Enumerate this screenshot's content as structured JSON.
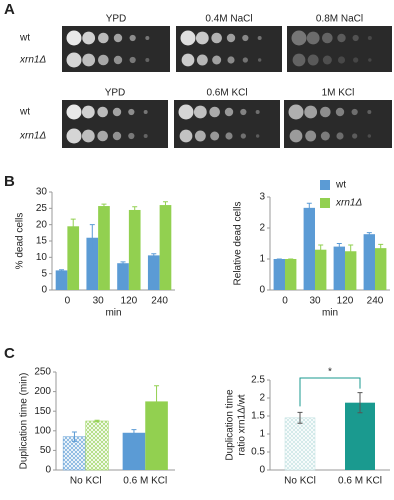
{
  "panel_labels": [
    "A",
    "B",
    "C"
  ],
  "plates": [
    {
      "conditions": [
        "YPD",
        "0.4M NaCl",
        "0.8M NaCl"
      ],
      "strains": [
        "wt",
        "xrn1Δ"
      ]
    },
    {
      "conditions": [
        "YPD",
        "0.6M KCl",
        "1M KCl"
      ],
      "strains": [
        "wt",
        "xrn1Δ"
      ]
    }
  ],
  "chart_data": [
    {
      "type": "bar",
      "ylabel": "% dead  cells",
      "xlabel": "min",
      "categories": [
        "0",
        "30",
        "120",
        "240"
      ],
      "series": [
        {
          "color": "#5b9bd5",
          "values": [
            6,
            16,
            8.2,
            10.6
          ],
          "errors": [
            0.2,
            4,
            0.4,
            0.5
          ]
        },
        {
          "color": "#92d050",
          "values": [
            19.5,
            25.7,
            24.5,
            26
          ],
          "errors": [
            2.2,
            0.6,
            1,
            1
          ]
        }
      ],
      "ylim": [
        0,
        30
      ],
      "yticks": [
        0,
        5,
        10,
        15,
        20,
        25,
        30
      ]
    },
    {
      "type": "bar",
      "ylabel": "Relative dead cells",
      "xlabel": "min",
      "categories": [
        "0",
        "30",
        "120",
        "240"
      ],
      "series": [
        {
          "name": "wt",
          "color": "#5b9bd5",
          "values": [
            1,
            2.65,
            1.4,
            1.8
          ],
          "errors": [
            0,
            0.15,
            0.1,
            0.05
          ]
        },
        {
          "name": "xrn1Δ",
          "color": "#92d050",
          "values": [
            1,
            1.3,
            1.25,
            1.35
          ],
          "errors": [
            0,
            0.15,
            0.2,
            0.12
          ]
        }
      ],
      "ylim": [
        0,
        3
      ],
      "yticks": [
        0,
        1,
        2,
        3
      ],
      "legend": "top-right"
    },
    {
      "type": "bar",
      "ylabel": "Duplication time (min)",
      "categories": [
        "No KCl",
        "0.6 M KCl"
      ],
      "hatched": [
        true,
        false
      ],
      "series": [
        {
          "color": "#5b9bd5",
          "values": [
            85,
            95
          ],
          "errors": [
            12,
            8
          ]
        },
        {
          "color": "#92d050",
          "values": [
            125,
            175
          ],
          "errors": [
            2,
            40
          ]
        }
      ],
      "ylim": [
        0,
        250
      ],
      "yticks": [
        0,
        50,
        100,
        150,
        200,
        250
      ]
    },
    {
      "type": "bar",
      "ylabel": [
        "Duplication time",
        "ratio xrn1Δ/wt"
      ],
      "categories": [
        "No KCl",
        "0.6 M KCl"
      ],
      "hatched": [
        true,
        false
      ],
      "series": [
        {
          "colors": [
            "#bfe0e0",
            "#1a9a8f"
          ],
          "values": [
            1.45,
            1.87
          ],
          "errors": [
            0.15,
            0.28
          ]
        }
      ],
      "significance": "*",
      "ylim": [
        0,
        2.5
      ],
      "yticks": [
        0,
        0.5,
        1,
        1.5,
        2,
        2.5
      ]
    }
  ]
}
